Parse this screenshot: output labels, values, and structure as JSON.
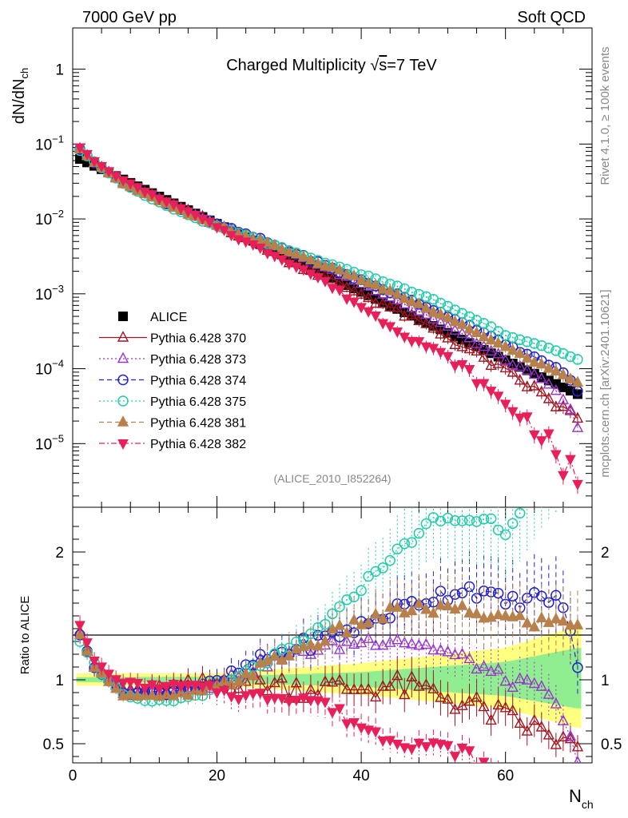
{
  "header": {
    "left": "7000 GeV pp",
    "right": "Soft QCD"
  },
  "side_labels": {
    "rivet": "Rivet 4.1.0, ≥ 100k events",
    "source": "mcplots.cern.ch [arXiv:2401.10621]"
  },
  "chart_data": {
    "type": "scatter",
    "title_prefix": "Charged Multiplicity ",
    "title_sqrt": "√",
    "title_s": "s",
    "title_suffix": "=7 TeV",
    "analysis_tag": "(ALICE_2010_I852264)",
    "ylabel_main": "dN/dN",
    "ylabel_main_sub": "ch",
    "ylabel_ratio": "Ratio to ALICE",
    "xlabel": "N",
    "xlabel_sub": "ch",
    "xlim": [
      0,
      72
    ],
    "ylim_main_log10": [
      -5.85,
      0.55
    ],
    "ylim_ratio": [
      0.35,
      2.35
    ],
    "x_ticks": [
      0,
      20,
      40,
      60
    ],
    "x_tick_labels": [
      "0",
      "20",
      "40",
      "60"
    ],
    "y_ticks_main_labels": [
      {
        "base": "1",
        "exp": ""
      },
      {
        "base": "10",
        "exp": "−1"
      },
      {
        "base": "10",
        "exp": "−2"
      },
      {
        "base": "10",
        "exp": "−3"
      },
      {
        "base": "10",
        "exp": "−4"
      },
      {
        "base": "10",
        "exp": "−5"
      }
    ],
    "y_ticks_ratio": [
      0.5,
      1,
      2
    ],
    "y_ticks_ratio_labels": [
      "0.5",
      "1",
      "2"
    ],
    "model": {
      "xmin": 1,
      "xmax": 70,
      "step": 1,
      "reference_log10_at_x1": -1.2,
      "reference_slope_per_unit": -0.0455
    },
    "series": [
      {
        "name": "ALICE",
        "color": "#000000",
        "marker": "square-filled",
        "line": "none",
        "ratio_knots": [
          [
            1,
            1
          ],
          [
            70,
            1
          ]
        ],
        "noise": 0,
        "error": 0.03
      },
      {
        "name": "Pythia 6.428 370",
        "color": "#a01520",
        "marker": "triangle-up-open",
        "line": "solid",
        "ratio_knots": [
          [
            1,
            1.38
          ],
          [
            3,
            1.1
          ],
          [
            7,
            0.92
          ],
          [
            12,
            0.93
          ],
          [
            20,
            0.97
          ],
          [
            24,
            1.0
          ],
          [
            30,
            0.95
          ],
          [
            38,
            0.93
          ],
          [
            44,
            0.95
          ],
          [
            50,
            0.9
          ],
          [
            56,
            0.78
          ],
          [
            60,
            0.7
          ],
          [
            64,
            0.62
          ],
          [
            70,
            0.45
          ]
        ],
        "noise": 0.1,
        "error": 0.06,
        "error_growth": 0.002
      },
      {
        "name": "Pythia 6.428 373",
        "color": "#9933cc",
        "marker": "triangle-up-open",
        "line": "dotted",
        "ratio_knots": [
          [
            1,
            1.35
          ],
          [
            3,
            1.1
          ],
          [
            7,
            0.9
          ],
          [
            12,
            0.9
          ],
          [
            20,
            0.97
          ],
          [
            26,
            1.12
          ],
          [
            32,
            1.22
          ],
          [
            40,
            1.3
          ],
          [
            45,
            1.32
          ],
          [
            50,
            1.25
          ],
          [
            56,
            1.12
          ],
          [
            60,
            1.0
          ],
          [
            66,
            0.9
          ],
          [
            70,
            0.4
          ]
        ],
        "noise": 0.05,
        "error": 0.05,
        "error_growth": 0.002
      },
      {
        "name": "Pythia 6.428 374",
        "color": "#2222cc",
        "marker": "circle-open",
        "line": "dashed",
        "ratio_knots": [
          [
            1,
            1.35
          ],
          [
            3,
            1.1
          ],
          [
            7,
            0.9
          ],
          [
            12,
            0.9
          ],
          [
            20,
            0.97
          ],
          [
            26,
            1.15
          ],
          [
            32,
            1.27
          ],
          [
            40,
            1.42
          ],
          [
            45,
            1.55
          ],
          [
            50,
            1.65
          ],
          [
            55,
            1.72
          ],
          [
            60,
            1.6
          ],
          [
            65,
            1.65
          ],
          [
            68,
            1.6
          ],
          [
            70,
            1.08
          ]
        ],
        "noise": 0.06,
        "error": 0.05,
        "error_growth": 0.002
      },
      {
        "name": "Pythia 6.428 375",
        "color": "#22ccaa",
        "marker": "circle-open",
        "line": "dotted",
        "ratio_knots": [
          [
            1,
            1.3
          ],
          [
            4,
            1.05
          ],
          [
            7,
            0.88
          ],
          [
            10,
            0.83
          ],
          [
            14,
            0.84
          ],
          [
            20,
            0.92
          ],
          [
            26,
            1.12
          ],
          [
            32,
            1.3
          ],
          [
            38,
            1.6
          ],
          [
            42,
            1.85
          ],
          [
            46,
            2.05
          ],
          [
            50,
            2.25
          ],
          [
            54,
            2.25
          ],
          [
            58,
            2.25
          ],
          [
            60,
            2.15
          ],
          [
            66,
            2.7
          ],
          [
            70,
            2.9
          ]
        ],
        "noise": 0.03,
        "error": 0.04,
        "error_growth": 0.002
      },
      {
        "name": "Pythia 6.428 381",
        "color": "#b8804a",
        "marker": "triangle-up-filled",
        "line": "dashed",
        "ratio_knots": [
          [
            1,
            1.35
          ],
          [
            3,
            1.1
          ],
          [
            7,
            0.88
          ],
          [
            12,
            0.86
          ],
          [
            18,
            0.9
          ],
          [
            22,
            0.98
          ],
          [
            28,
            1.15
          ],
          [
            34,
            1.3
          ],
          [
            40,
            1.45
          ],
          [
            46,
            1.55
          ],
          [
            52,
            1.55
          ],
          [
            58,
            1.5
          ],
          [
            64,
            1.45
          ],
          [
            70,
            1.45
          ]
        ],
        "noise": 0.05,
        "error": 0.05,
        "error_growth": 0.002
      },
      {
        "name": "Pythia 6.428 382",
        "color": "#e8205a",
        "marker": "triangle-down-filled",
        "line": "dashdot",
        "ratio_knots": [
          [
            1,
            1.43
          ],
          [
            3,
            1.15
          ],
          [
            6,
            1.0
          ],
          [
            10,
            0.95
          ],
          [
            16,
            0.95
          ],
          [
            20,
            0.92
          ],
          [
            24,
            0.87
          ],
          [
            30,
            0.88
          ],
          [
            34,
            0.84
          ],
          [
            38,
            0.7
          ],
          [
            42,
            0.58
          ],
          [
            46,
            0.52
          ],
          [
            50,
            0.48
          ],
          [
            54,
            0.44
          ],
          [
            58,
            0.3
          ],
          [
            64,
            0.2
          ],
          [
            70,
            0.05
          ]
        ],
        "noise": 0.05,
        "error": 0.05,
        "error_growth": 0.003
      }
    ],
    "bands": {
      "yellow_halfwidth": [
        [
          1,
          0.05
        ],
        [
          20,
          0.05
        ],
        [
          40,
          0.13
        ],
        [
          60,
          0.25
        ],
        [
          70,
          0.42
        ]
      ],
      "green_halfwidth": [
        [
          1,
          0.02
        ],
        [
          20,
          0.025
        ],
        [
          40,
          0.06
        ],
        [
          60,
          0.14
        ],
        [
          70,
          0.25
        ]
      ]
    }
  }
}
